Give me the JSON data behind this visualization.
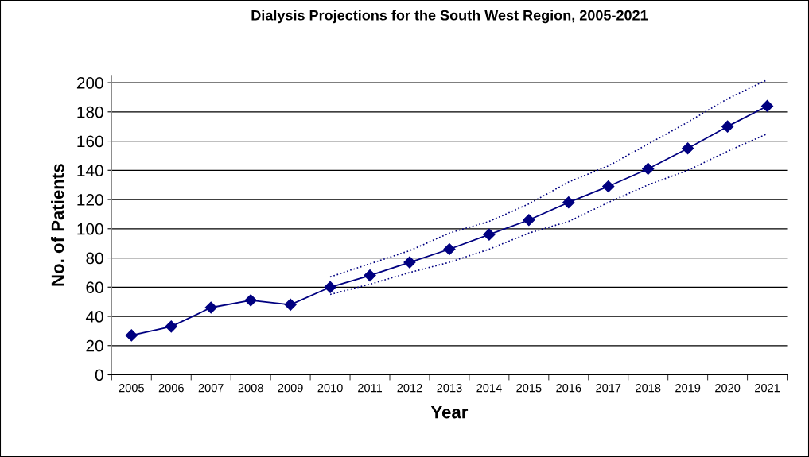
{
  "chart_data": {
    "type": "line",
    "title": "Dialysis Projections for the South West Region, 2005-2021",
    "xlabel": "Year",
    "ylabel": "No. of Patients",
    "categories": [
      "2005",
      "2006",
      "2007",
      "2008",
      "2009",
      "2010",
      "2011",
      "2012",
      "2013",
      "2014",
      "2015",
      "2016",
      "2017",
      "2018",
      "2019",
      "2020",
      "2021"
    ],
    "series": [
      {
        "color": "#000080",
        "values": [
          27,
          33,
          46,
          51,
          48,
          60,
          68,
          77,
          86,
          96,
          106,
          118,
          129,
          141,
          155,
          170,
          184
        ]
      },
      {
        "color": "#000080",
        "line_style": "dotted",
        "marker": "none",
        "values": [
          null,
          null,
          null,
          null,
          null,
          55,
          62,
          70,
          77,
          86,
          97,
          105,
          118,
          130,
          140,
          153,
          165
        ]
      },
      {
        "color": "#000080",
        "line_style": "dotted",
        "marker": "none",
        "values": [
          null,
          null,
          null,
          null,
          null,
          67,
          76,
          85,
          97,
          105,
          117,
          132,
          143,
          158,
          173,
          189,
          202
        ]
      }
    ],
    "ylim": [
      0,
      205
    ],
    "yticks": [
      0,
      20,
      40,
      60,
      80,
      100,
      120,
      140,
      160,
      180,
      200
    ],
    "grid": "y",
    "marker": "diamond",
    "line_style": "solid",
    "legend": false
  }
}
